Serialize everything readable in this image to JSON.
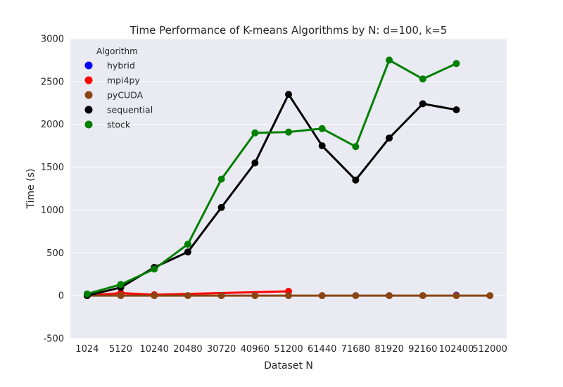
{
  "chart_data": {
    "type": "line",
    "title": "Time Performance of K-means Algorithms by N: d=100, k=5",
    "xlabel": "Dataset N",
    "ylabel": "Time (s)",
    "categories": [
      "1024",
      "5120",
      "10240",
      "20480",
      "30720",
      "40960",
      "51200",
      "61440",
      "71680",
      "81920",
      "92160",
      "102400",
      "512000"
    ],
    "ylim": [
      -500,
      3000
    ],
    "yticks": [
      -500,
      0,
      500,
      1000,
      1500,
      2000,
      2500,
      3000
    ],
    "grid": true,
    "legend": {
      "title": "Algorithm",
      "placement": "top-left"
    },
    "series": [
      {
        "name": "hybrid",
        "color": "#0000ff",
        "values": [
          null,
          null,
          null,
          null,
          null,
          null,
          null,
          null,
          null,
          null,
          null,
          5,
          null
        ]
      },
      {
        "name": "mpi4py",
        "color": "#ff0000",
        "values": [
          0,
          30,
          10,
          null,
          null,
          null,
          50,
          null,
          null,
          null,
          null,
          null,
          null
        ]
      },
      {
        "name": "pyCUDA",
        "color": "#8b4513",
        "values": [
          0,
          0,
          0,
          0,
          0,
          0,
          0,
          0,
          0,
          0,
          0,
          0,
          0
        ]
      },
      {
        "name": "sequential",
        "color": "#000000",
        "values": [
          0,
          95,
          330,
          510,
          1030,
          1550,
          2350,
          1750,
          1350,
          1840,
          2240,
          2170,
          null
        ]
      },
      {
        "name": "stock",
        "color": "#008000",
        "values": [
          20,
          130,
          310,
          600,
          1360,
          1900,
          1910,
          1950,
          1740,
          2750,
          2530,
          2710,
          null
        ]
      }
    ]
  }
}
